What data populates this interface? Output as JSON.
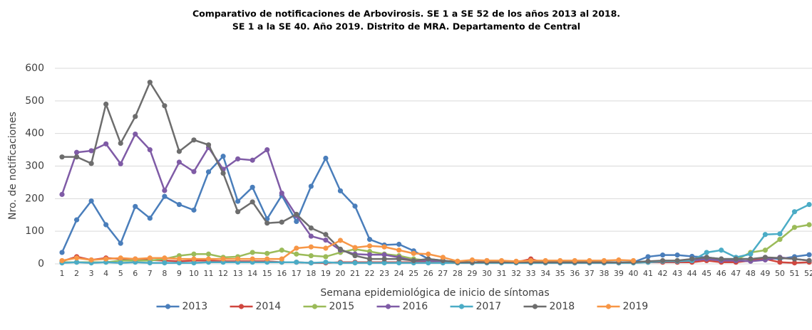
{
  "chart_data": {
    "type": "line",
    "title": [
      "Comparativo de notificaciones de Arbovirosis. SE 1 a SE 52 de los años 2013 al 2018.",
      "SE 1 a la SE 40. Año 2019. Distrito de MRA. Departamento de Central"
    ],
    "x_label": "Semana epidemiológica de inicio de síntomas",
    "y_label": "Nro. de notificaciones",
    "categories": [
      "1",
      "2",
      "3",
      "4",
      "5",
      "6",
      "7",
      "8",
      "9",
      "10",
      "11",
      "12",
      "13",
      "14",
      "15",
      "16",
      "17",
      "18",
      "19",
      "20",
      "21",
      "22",
      "23",
      "24",
      "25",
      "26",
      "27",
      "28",
      "29",
      "30",
      "31",
      "32",
      "33",
      "34",
      "35",
      "36",
      "37",
      "38",
      "39",
      "40",
      "41",
      "42",
      "43",
      "44",
      "45",
      "46",
      "47",
      "48",
      "49",
      "50",
      "51",
      "52"
    ],
    "ylim": [
      0,
      600
    ],
    "yticks": [
      0,
      100,
      200,
      300,
      400,
      500,
      600
    ],
    "grid": true,
    "legend": "bottom",
    "series": [
      {
        "name": "2013",
        "color": "#4a7ebb",
        "values": [
          35,
          135,
          193,
          120,
          63,
          176,
          140,
          207,
          182,
          165,
          282,
          330,
          192,
          235,
          138,
          210,
          130,
          238,
          324,
          224,
          177,
          75,
          58,
          60,
          40,
          15,
          10,
          5,
          5,
          5,
          5,
          5,
          5,
          5,
          5,
          5,
          5,
          5,
          5,
          5,
          22,
          27,
          27,
          23,
          20,
          15,
          15,
          15,
          18,
          15,
          22,
          28
        ]
      },
      {
        "name": "2014",
        "color": "#d0473f",
        "values": [
          8,
          22,
          12,
          18,
          15,
          15,
          12,
          10,
          8,
          10,
          10,
          8,
          8,
          8,
          8,
          5,
          5,
          3,
          3,
          5,
          5,
          5,
          5,
          5,
          5,
          5,
          5,
          3,
          3,
          10,
          5,
          5,
          15,
          3,
          3,
          3,
          3,
          3,
          3,
          5,
          5,
          5,
          5,
          5,
          10,
          5,
          5,
          10,
          15,
          5,
          3,
          5
        ]
      },
      {
        "name": "2015",
        "color": "#9bbb59",
        "values": [
          5,
          5,
          5,
          5,
          10,
          10,
          10,
          15,
          25,
          30,
          30,
          20,
          22,
          35,
          32,
          42,
          30,
          25,
          22,
          35,
          45,
          38,
          30,
          25,
          15,
          10,
          8,
          8,
          5,
          5,
          5,
          5,
          5,
          5,
          5,
          5,
          5,
          5,
          5,
          5,
          5,
          8,
          10,
          12,
          15,
          10,
          12,
          35,
          42,
          75,
          112,
          120
        ]
      },
      {
        "name": "2016",
        "color": "#7f5ba6",
        "values": [
          213,
          342,
          347,
          368,
          307,
          398,
          350,
          225,
          312,
          283,
          357,
          290,
          322,
          318,
          350,
          217,
          148,
          85,
          73,
          42,
          30,
          28,
          28,
          20,
          10,
          10,
          8,
          5,
          5,
          5,
          5,
          5,
          5,
          5,
          5,
          5,
          5,
          5,
          5,
          5,
          5,
          8,
          8,
          10,
          15,
          10,
          10,
          8,
          12,
          20,
          15,
          10
        ]
      },
      {
        "name": "2017",
        "color": "#4bacc6",
        "values": [
          3,
          5,
          3,
          5,
          3,
          5,
          3,
          3,
          3,
          3,
          5,
          5,
          5,
          5,
          5,
          5,
          5,
          3,
          5,
          3,
          3,
          3,
          3,
          3,
          3,
          3,
          3,
          3,
          3,
          3,
          3,
          3,
          3,
          3,
          3,
          3,
          3,
          3,
          3,
          3,
          5,
          8,
          8,
          10,
          35,
          42,
          20,
          30,
          90,
          92,
          160,
          182
        ]
      },
      {
        "name": "2018",
        "color": "#6d6d6d",
        "values": [
          328,
          328,
          308,
          490,
          370,
          452,
          557,
          485,
          345,
          380,
          365,
          278,
          160,
          190,
          125,
          128,
          152,
          110,
          90,
          45,
          25,
          15,
          15,
          15,
          10,
          15,
          10,
          5,
          5,
          5,
          5,
          5,
          5,
          5,
          5,
          5,
          5,
          5,
          5,
          5,
          8,
          10,
          10,
          15,
          20,
          15,
          15,
          15,
          20,
          18,
          15,
          10
        ]
      },
      {
        "name": "2019",
        "color": "#f79646",
        "values": [
          10,
          18,
          12,
          15,
          18,
          15,
          18,
          18,
          15,
          15,
          15,
          15,
          15,
          15,
          15,
          15,
          48,
          52,
          48,
          72,
          50,
          55,
          52,
          42,
          32,
          30,
          20,
          8,
          12,
          10,
          10,
          8,
          10,
          10,
          10,
          10,
          10,
          10,
          12,
          10,
          null,
          null,
          null,
          null,
          null,
          null,
          null,
          null,
          null,
          null,
          null,
          null
        ]
      }
    ]
  }
}
